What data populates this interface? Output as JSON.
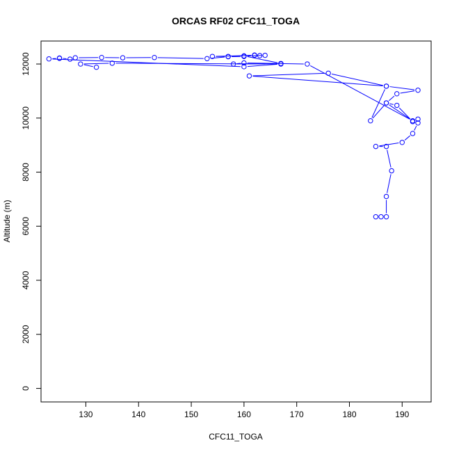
{
  "chart_data": {
    "type": "scatter",
    "title": "ORCAS RF02 CFC11_TOGA",
    "xlabel": "CFC11_TOGA",
    "ylabel": "Altitude (m)",
    "xlim": [
      121.5,
      195.5
    ],
    "ylim": [
      -500,
      12850
    ],
    "x_ticks": [
      130,
      140,
      150,
      160,
      170,
      180,
      190
    ],
    "y_ticks": [
      0,
      2000,
      4000,
      6000,
      8000,
      10000,
      12000
    ],
    "grid": false,
    "legend": "none",
    "colors": {
      "series": "#0000ff",
      "axis": "#000000"
    },
    "series": [
      {
        "x": [
          185,
          186,
          187,
          187,
          188,
          187,
          185,
          190,
          192,
          193,
          193,
          192,
          189,
          187,
          189,
          193,
          187,
          161,
          176,
          187,
          184,
          187,
          192,
          172,
          160,
          158,
          167,
          160,
          164,
          163,
          162,
          157,
          154,
          162,
          160,
          157,
          153,
          143,
          137,
          133,
          128,
          127,
          125,
          125,
          123,
          160,
          167,
          135,
          129,
          132
        ],
        "y": [
          6350,
          6350,
          6350,
          7100,
          8050,
          8950,
          8950,
          9100,
          9430,
          9820,
          9960,
          9870,
          10470,
          10560,
          10900,
          11030,
          11180,
          11560,
          11660,
          11180,
          9900,
          10560,
          9900,
          12000,
          12040,
          12000,
          12020,
          12300,
          12320,
          12310,
          12330,
          12280,
          12280,
          12320,
          12280,
          12270,
          12200,
          12240,
          12230,
          12240,
          12230,
          12180,
          12220,
          12210,
          12190,
          11900,
          12000,
          12030,
          12000,
          11880
        ]
      }
    ]
  }
}
